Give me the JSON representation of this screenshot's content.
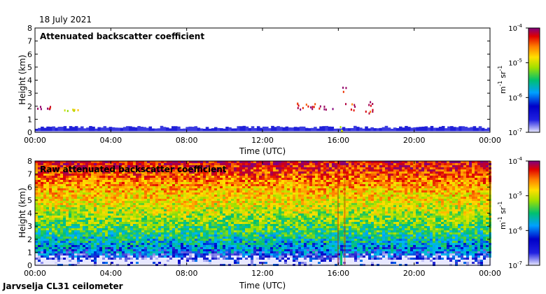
{
  "header": {
    "date": "18 July 2021"
  },
  "footer": {
    "site_label": "Jarvselja CL31 ceilometer"
  },
  "colorbar": {
    "ticks": [
      {
        "base": "10",
        "exp": "-4",
        "value": 0.0001
      },
      {
        "base": "10",
        "exp": "-5",
        "value": 1e-05
      },
      {
        "base": "10",
        "exp": "-6",
        "value": 1e-06
      },
      {
        "base": "10",
        "exp": "-7",
        "value": 1e-07
      }
    ],
    "unit_label": {
      "m": "m",
      "m_exp": "-1",
      "sr": " sr",
      "sr_exp": "-1"
    },
    "colors": [
      "#e8e8ff",
      "#0000c8",
      "#00b4ff",
      "#00c070",
      "#a0e000",
      "#ffe000",
      "#ff8000",
      "#e00000",
      "#800080"
    ]
  },
  "chart_data": [
    {
      "type": "heatmap",
      "title": "Attenuated backscatter coefficient",
      "xlabel": "Time (UTC)",
      "ylabel": "Height (km)",
      "xlim": [
        "00:00",
        "00:00"
      ],
      "ylim": [
        0,
        8
      ],
      "x_ticks": [
        "00:00",
        "04:00",
        "08:00",
        "12:00",
        "16:00",
        "20:00",
        "00:00"
      ],
      "y_ticks": [
        "0",
        "1",
        "2",
        "3",
        "4",
        "5",
        "6",
        "7",
        "8"
      ],
      "color_scale": "log",
      "color_range": [
        1e-07,
        0.0001
      ],
      "features": [
        {
          "name": "boundary layer",
          "t_start": 0.0,
          "t_end": 24.0,
          "h_bottom": 0.0,
          "h_top": 0.45,
          "level": 1.2e-07
        },
        {
          "name": "cloud",
          "t_start": 0.1,
          "t_end": 1.0,
          "h_bottom": 1.85,
          "h_top": 2.05,
          "level": 6e-05
        },
        {
          "name": "cloud",
          "t_start": 1.5,
          "t_end": 2.3,
          "h_bottom": 1.7,
          "h_top": 1.85,
          "level": 6e-06
        },
        {
          "name": "cloud",
          "t_start": 13.7,
          "t_end": 15.8,
          "h_bottom": 1.8,
          "h_top": 2.3,
          "level": 5e-05
        },
        {
          "name": "cloud",
          "t_start": 16.2,
          "t_end": 16.4,
          "h_bottom": 3.0,
          "h_top": 3.5,
          "level": 5e-05
        },
        {
          "name": "cloud",
          "t_start": 16.3,
          "t_end": 18.0,
          "h_bottom": 1.5,
          "h_top": 2.4,
          "level": 4e-05
        },
        {
          "name": "green spike",
          "t_start": 16.05,
          "t_end": 16.2,
          "h_bottom": 0.0,
          "h_top": 1.1,
          "level": 3e-06
        }
      ]
    },
    {
      "type": "heatmap",
      "title": "Raw attenuated backscatter coefficient",
      "xlabel": "Time (UTC)",
      "ylabel": "Height (km)",
      "xlim": [
        "00:00",
        "00:00"
      ],
      "ylim": [
        0,
        8
      ],
      "x_ticks": [
        "00:00",
        "04:00",
        "08:00",
        "12:00",
        "16:00",
        "20:00",
        "00:00"
      ],
      "y_ticks": [
        "0",
        "1",
        "2",
        "3",
        "4",
        "5",
        "6",
        "7",
        "8"
      ],
      "color_scale": "log",
      "color_range": [
        1e-07,
        0.0001
      ],
      "height_profile": [
        {
          "h": 0.0,
          "level": 1.5e-07
        },
        {
          "h": 0.5,
          "level": 1.5e-07
        },
        {
          "h": 1.0,
          "level": 4e-07
        },
        {
          "h": 2.0,
          "level": 1e-06
        },
        {
          "h": 3.0,
          "level": 2e-06
        },
        {
          "h": 4.0,
          "level": 4e-06
        },
        {
          "h": 5.0,
          "level": 7e-06
        },
        {
          "h": 6.0,
          "level": 1.2e-05
        },
        {
          "h": 7.0,
          "level": 2.5e-05
        },
        {
          "h": 8.0,
          "level": 5e-05
        }
      ]
    }
  ]
}
